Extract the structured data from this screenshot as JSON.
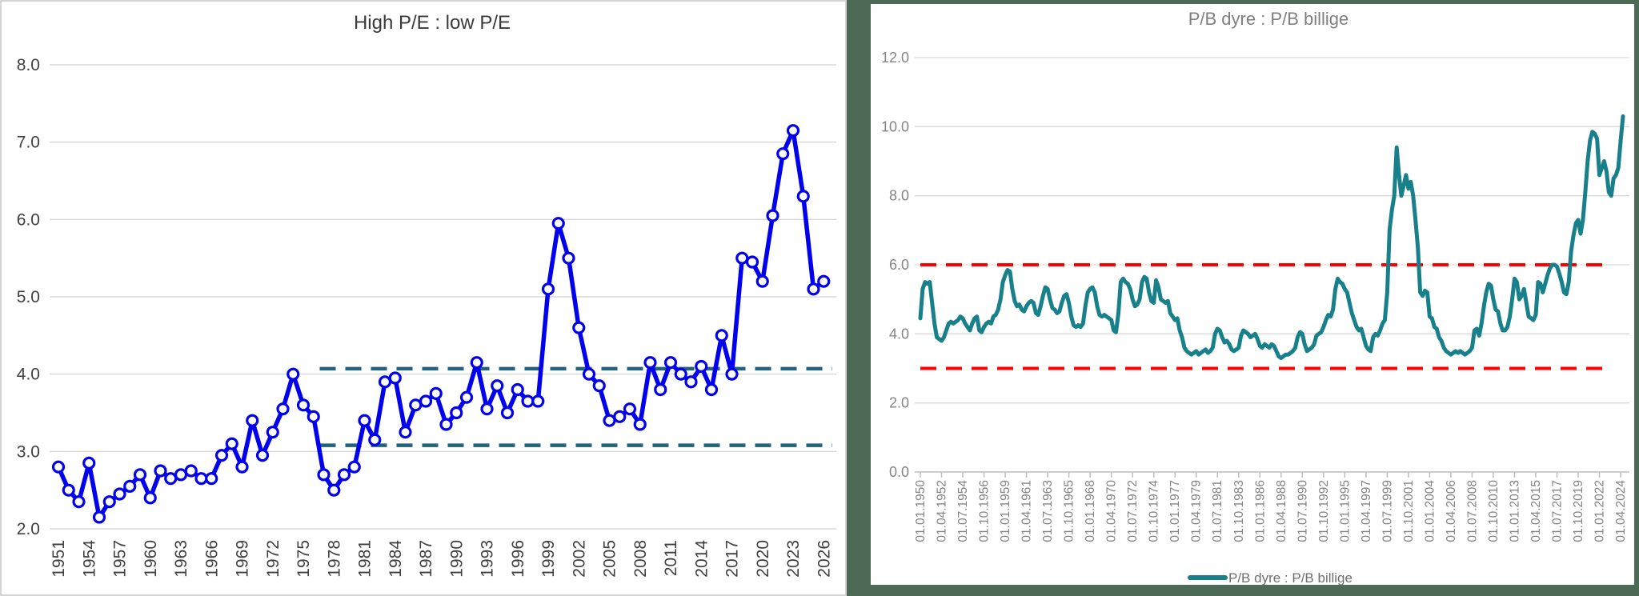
{
  "chart_data": [
    {
      "type": "line",
      "title": "High P/E : low P/E",
      "series_name": "High P/E : low P/E",
      "line_color": "#0000EE",
      "marker": "open-circle-white-fill",
      "ylim": [
        2.0,
        8.0
      ],
      "y_tick_labels": [
        "8.0",
        "7.0",
        "6.0",
        "5.0",
        "4.0",
        "3.0",
        "2.0"
      ],
      "x_tick_labels": [
        "1951",
        "1954",
        "1957",
        "1960",
        "1963",
        "1966",
        "1969",
        "1972",
        "1975",
        "1978",
        "1981",
        "1984",
        "1987",
        "1990",
        "1993",
        "1996",
        "1999",
        "2002",
        "2005",
        "2008",
        "2011",
        "2014",
        "2017",
        "2020",
        "2023",
        "2026"
      ],
      "grid": true,
      "years": [
        1951,
        1952,
        1953,
        1954,
        1955,
        1956,
        1957,
        1958,
        1959,
        1960,
        1961,
        1962,
        1963,
        1964,
        1965,
        1966,
        1967,
        1968,
        1969,
        1970,
        1971,
        1972,
        1973,
        1974,
        1975,
        1976,
        1977,
        1978,
        1979,
        1980,
        1981,
        1982,
        1983,
        1984,
        1985,
        1986,
        1987,
        1988,
        1989,
        1990,
        1991,
        1992,
        1993,
        1994,
        1995,
        1996,
        1997,
        1998,
        1999,
        2000,
        2001,
        2002,
        2003,
        2004,
        2005,
        2006,
        2007,
        2008,
        2009,
        2010,
        2011,
        2012,
        2013,
        2014,
        2015,
        2016,
        2017,
        2018,
        2019,
        2020,
        2021,
        2022,
        2023,
        2024,
        2025,
        2026
      ],
      "values": [
        2.8,
        2.5,
        2.35,
        2.85,
        2.15,
        2.35,
        2.45,
        2.55,
        2.7,
        2.4,
        2.75,
        2.65,
        2.7,
        2.75,
        2.65,
        2.65,
        2.95,
        3.1,
        2.8,
        3.4,
        2.95,
        3.25,
        3.55,
        4.0,
        3.6,
        3.45,
        2.7,
        2.5,
        2.7,
        2.8,
        3.4,
        3.15,
        3.9,
        3.95,
        3.25,
        3.6,
        3.65,
        3.75,
        3.35,
        3.5,
        3.7,
        4.15,
        3.55,
        3.85,
        3.5,
        3.8,
        3.65,
        3.65,
        5.1,
        5.95,
        5.5,
        4.6,
        4.0,
        3.85,
        3.4,
        3.45,
        3.55,
        3.35,
        4.15,
        3.8,
        4.15,
        4.0,
        3.9,
        4.1,
        3.8,
        4.5,
        4.0,
        5.5,
        5.45,
        5.2,
        6.05,
        6.85,
        7.15,
        6.3,
        5.1,
        5.2
      ],
      "reference_lines": [
        {
          "y": 4.07,
          "style": "dashed",
          "color": "#21637E",
          "from_year": 1977,
          "to_year": 2026
        },
        {
          "y": 3.08,
          "style": "dashed",
          "color": "#21637E",
          "from_year": 1977,
          "to_year": 2026
        }
      ]
    },
    {
      "type": "line",
      "title": "P/B dyre : P/B billige",
      "series_name": "P/B dyre : P/B billige",
      "legend": {
        "position": "bottom",
        "label": "P/B dyre : P/B billige"
      },
      "line_color": "#17808A",
      "frame_color": "#4C6A56",
      "ylim": [
        0.0,
        12.0
      ],
      "y_tick_labels": [
        "12.0",
        "10.0",
        "8.0",
        "6.0",
        "4.0",
        "2.0",
        "0.0"
      ],
      "x_start": "01.01.1950",
      "x_end": "01.07.2024",
      "frequency": "quarterly",
      "x_tick_labels": [
        "01.01.1950",
        "01.04.1952",
        "01.07.1954",
        "01.10.1956",
        "01.01.1959",
        "01.04.1961",
        "01.07.1963",
        "01.10.1965",
        "01.01.1968",
        "01.04.1970",
        "01.07.1972",
        "01.10.1974",
        "01.01.1977",
        "01.04.1979",
        "01.07.1981",
        "01.10.1983",
        "01.01.1986",
        "01.04.1988",
        "01.07.1990",
        "01.10.1992",
        "01.01.1995",
        "01.04.1997",
        "01.07.1999",
        "01.10.2001",
        "01.01.2004",
        "01.04.2006",
        "01.07.2008",
        "01.10.2010",
        "01.01.2013",
        "01.04.2015",
        "01.07.2017",
        "01.10.2019",
        "01.01.2022",
        "01.04.2024"
      ],
      "x_tick_every_n_points": 9,
      "grid": true,
      "values": [
        4.45,
        5.3,
        5.5,
        5.45,
        5.5,
        4.9,
        4.3,
        3.9,
        3.85,
        3.8,
        3.9,
        4.1,
        4.3,
        4.35,
        4.3,
        4.35,
        4.4,
        4.5,
        4.45,
        4.3,
        4.2,
        4.1,
        4.3,
        4.45,
        4.5,
        4.1,
        4.05,
        4.2,
        4.3,
        4.35,
        4.3,
        4.5,
        4.55,
        4.7,
        5.0,
        5.5,
        5.7,
        5.85,
        5.8,
        5.3,
        4.95,
        4.8,
        4.85,
        4.7,
        4.65,
        4.8,
        4.9,
        4.95,
        4.9,
        4.6,
        4.55,
        4.8,
        5.1,
        5.35,
        5.3,
        5.0,
        4.75,
        4.7,
        4.6,
        4.65,
        4.9,
        5.1,
        5.15,
        4.9,
        4.5,
        4.25,
        4.2,
        4.25,
        4.2,
        4.3,
        4.8,
        5.2,
        5.3,
        5.35,
        5.2,
        4.8,
        4.55,
        4.5,
        4.55,
        4.5,
        4.45,
        4.4,
        4.1,
        4.05,
        4.6,
        5.5,
        5.6,
        5.5,
        5.45,
        5.3,
        5.0,
        4.8,
        4.85,
        5.0,
        5.5,
        5.65,
        5.6,
        5.2,
        4.95,
        4.9,
        5.55,
        5.35,
        5.0,
        4.95,
        4.9,
        4.95,
        4.6,
        4.5,
        4.4,
        4.45,
        4.1,
        3.9,
        3.6,
        3.5,
        3.45,
        3.4,
        3.45,
        3.5,
        3.4,
        3.45,
        3.5,
        3.55,
        3.45,
        3.5,
        3.6,
        4.0,
        4.15,
        4.1,
        3.9,
        3.75,
        3.8,
        3.7,
        3.55,
        3.5,
        3.55,
        3.6,
        3.95,
        4.1,
        4.05,
        4.0,
        3.9,
        3.95,
        4.0,
        3.85,
        3.65,
        3.6,
        3.7,
        3.65,
        3.6,
        3.7,
        3.65,
        3.5,
        3.35,
        3.3,
        3.35,
        3.4,
        3.4,
        3.45,
        3.5,
        3.6,
        3.9,
        4.05,
        4.0,
        3.7,
        3.5,
        3.55,
        3.6,
        3.7,
        3.95,
        4.0,
        4.05,
        4.2,
        4.4,
        4.55,
        4.5,
        4.7,
        5.3,
        5.6,
        5.5,
        5.45,
        5.3,
        5.2,
        4.9,
        4.6,
        4.4,
        4.2,
        4.1,
        4.15,
        3.9,
        3.65,
        3.55,
        3.5,
        3.9,
        4.0,
        3.95,
        4.1,
        4.3,
        4.4,
        5.2,
        7.0,
        7.6,
        8.0,
        9.4,
        8.6,
        8.0,
        8.3,
        8.6,
        8.2,
        8.4,
        8.0,
        7.3,
        6.5,
        5.2,
        5.1,
        5.25,
        5.2,
        4.5,
        4.45,
        4.2,
        4.15,
        3.9,
        3.8,
        3.6,
        3.5,
        3.45,
        3.4,
        3.45,
        3.5,
        3.45,
        3.5,
        3.45,
        3.4,
        3.45,
        3.5,
        3.6,
        4.1,
        4.15,
        3.95,
        4.3,
        4.8,
        5.2,
        5.45,
        5.4,
        5.0,
        4.7,
        4.65,
        4.3,
        4.1,
        4.1,
        4.2,
        4.5,
        5.0,
        5.6,
        5.5,
        5.0,
        5.1,
        5.3,
        4.9,
        4.5,
        4.45,
        4.4,
        4.55,
        5.5,
        5.45,
        5.2,
        5.45,
        5.7,
        5.9,
        6.0,
        6.0,
        5.95,
        5.75,
        5.5,
        5.2,
        5.15,
        5.5,
        6.4,
        6.85,
        7.2,
        7.3,
        6.9,
        7.3,
        8.1,
        9.0,
        9.6,
        9.85,
        9.8,
        9.65,
        8.6,
        8.8,
        9.0,
        8.7,
        8.1,
        8.0,
        8.5,
        8.6,
        8.8,
        9.6,
        10.3
      ],
      "reference_lines": [
        {
          "y": 6.0,
          "style": "dashed",
          "color": "#FF0000"
        },
        {
          "y": 3.0,
          "style": "dashed",
          "color": "#FF0000"
        }
      ]
    }
  ],
  "colors": {
    "grid": "#D9D9D9",
    "left_text": "#3F3F3F",
    "right_text": "#848484",
    "axis_line": "#BFBFBF",
    "left_panel_border": "#C6C6C6"
  }
}
